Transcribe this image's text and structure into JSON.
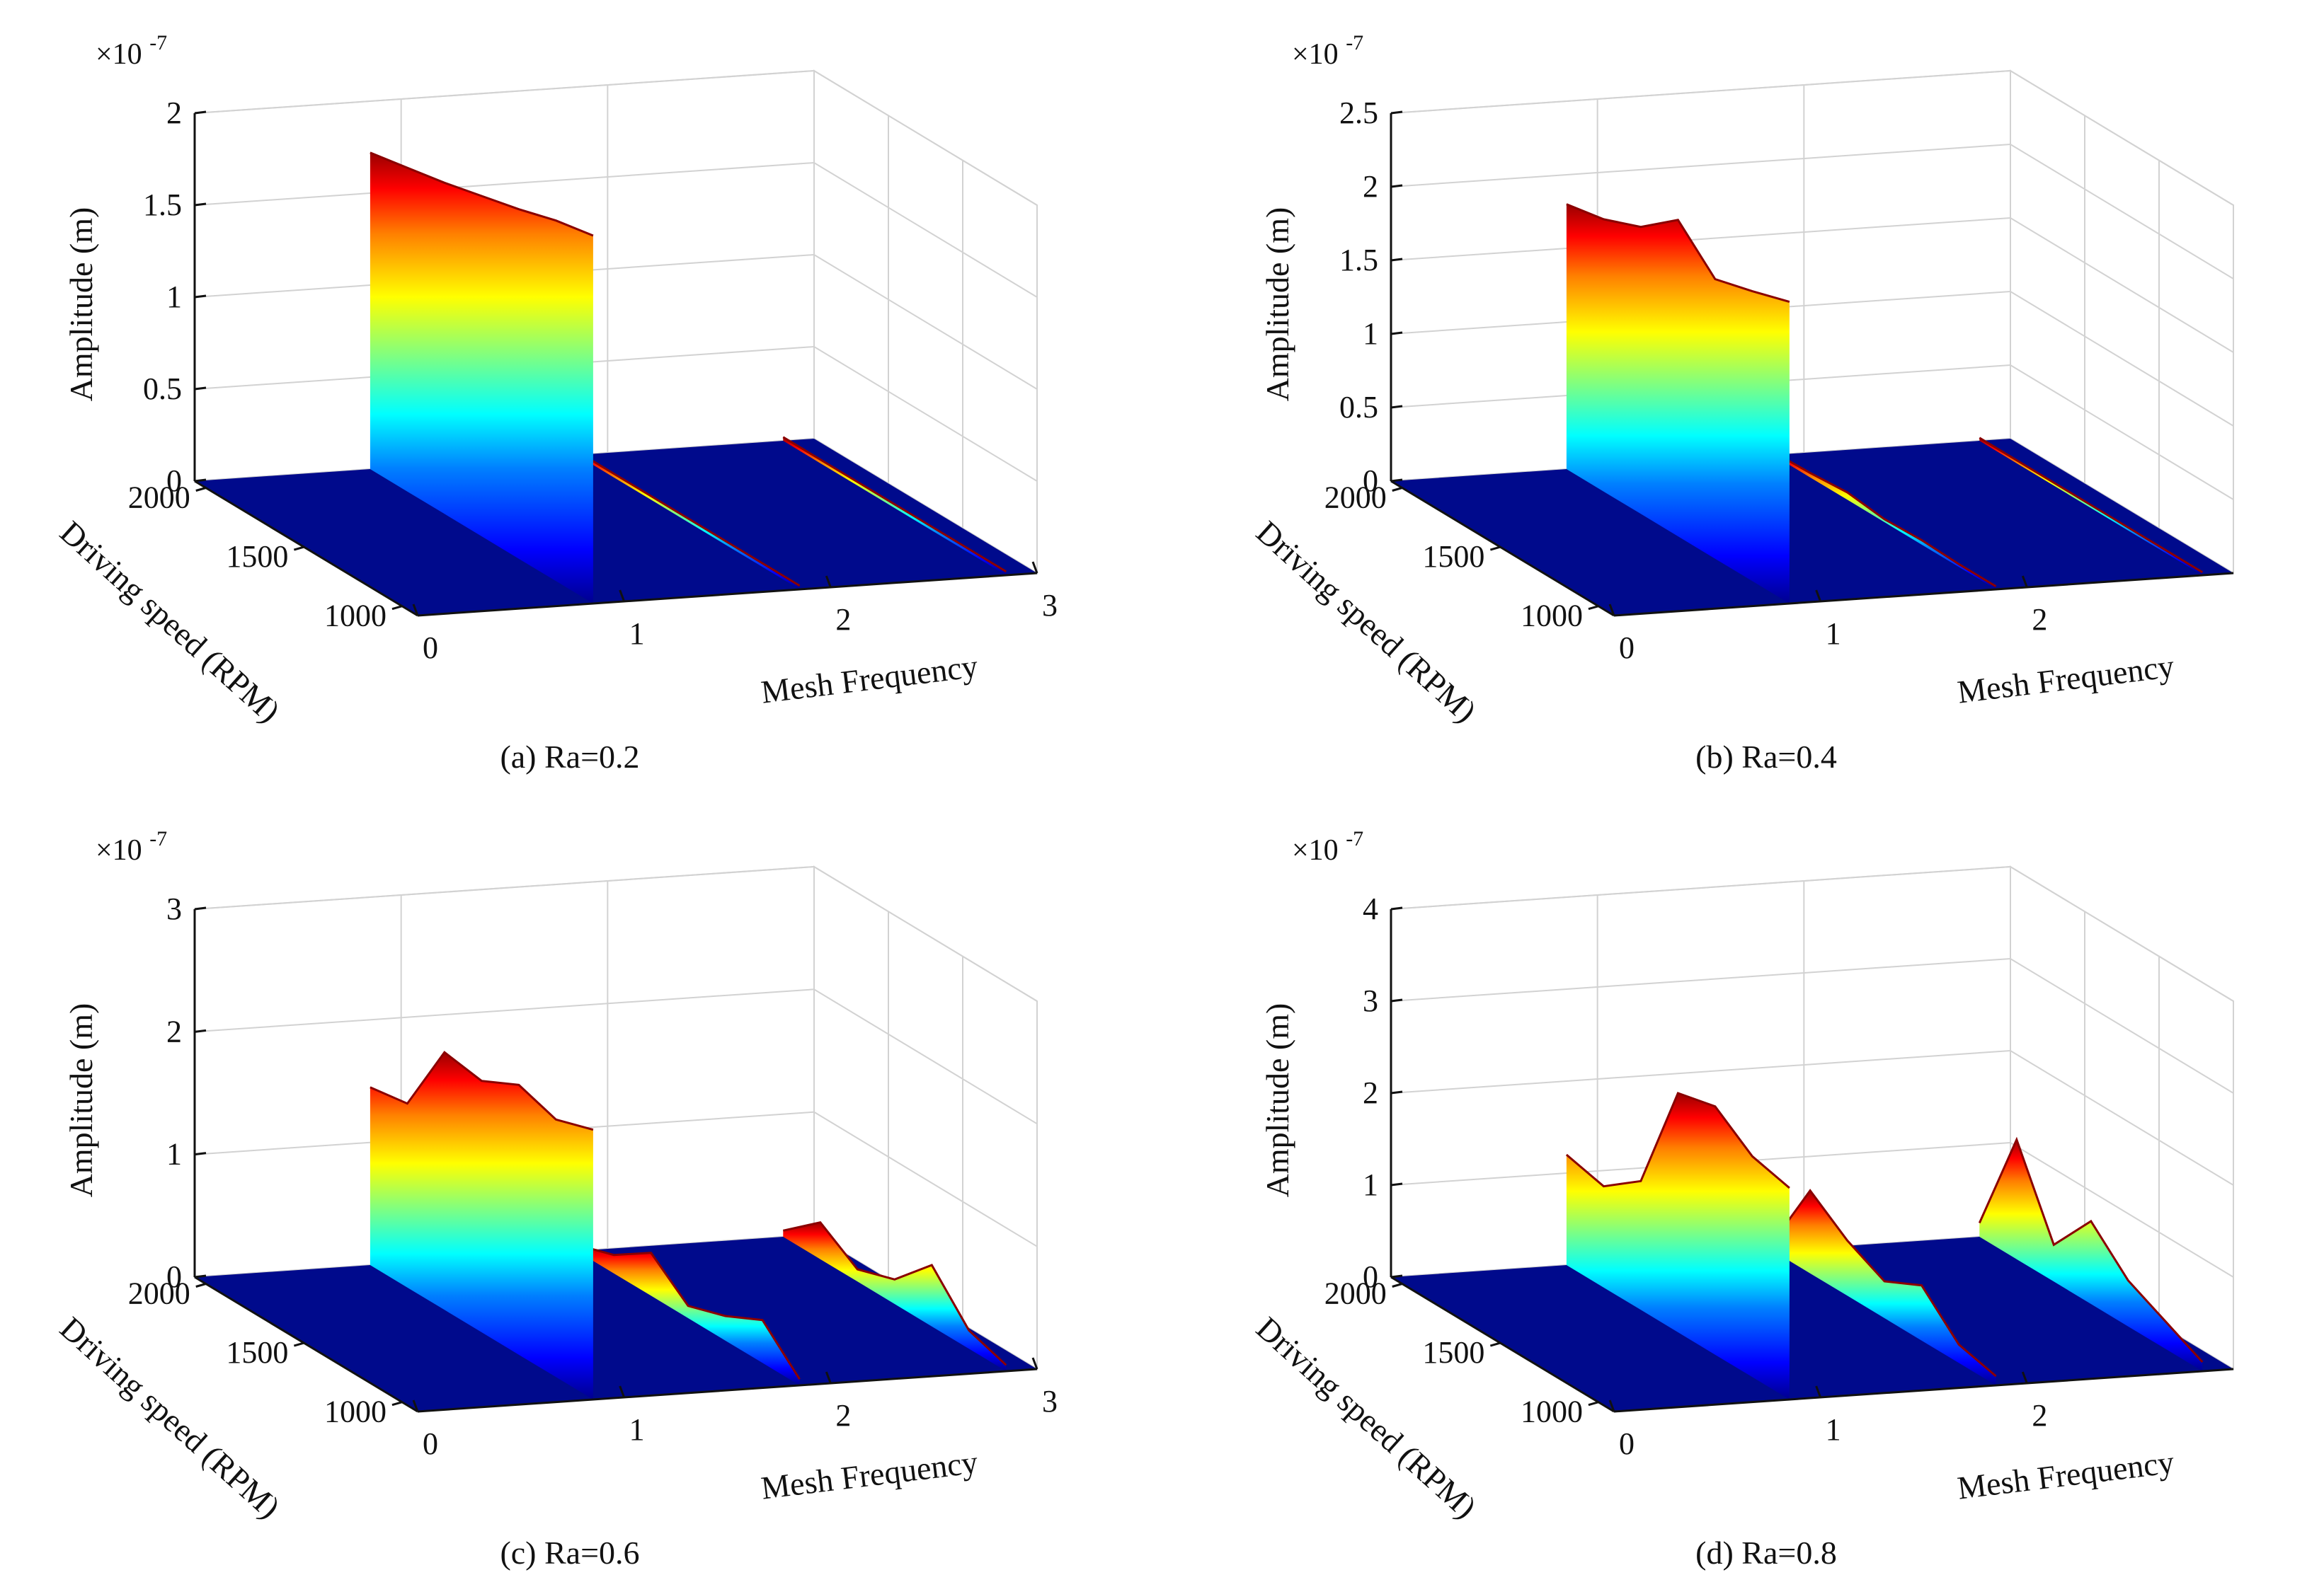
{
  "figure": {
    "background": "#ffffff"
  },
  "chart_data": [
    {
      "type": "surface3d",
      "panel": "a",
      "caption": "(a) Ra=0.2",
      "exponent_label": "×10",
      "exponent": "-7",
      "zlabel": "Amplitude (m)",
      "ylabel": "Driving speed (RPM)",
      "xlabel": "Mesh Frequency",
      "zlim": [
        0,
        2
      ],
      "zticks": [
        "0",
        "0.5",
        "1",
        "1.5",
        "2"
      ],
      "yticks": [
        "2000",
        "1500",
        "1000"
      ],
      "xticks": [
        "0",
        "1",
        "2",
        "3"
      ],
      "colormap": "jet",
      "peaks": [
        {
          "x": 1,
          "amplitude_profile": [
            1.72,
            1.76,
            1.8,
            1.85,
            1.9,
            1.96,
            2.0
          ]
        },
        {
          "x": 2,
          "amplitude_profile": [
            0.02,
            0.02,
            0.02,
            0.02,
            0.02,
            0.02,
            0.02
          ]
        },
        {
          "x": 3,
          "amplitude_profile": [
            0.02,
            0.02,
            0.02,
            0.02,
            0.02,
            0.02,
            0.02
          ]
        }
      ]
    },
    {
      "type": "surface3d",
      "panel": "b",
      "caption": "(b) Ra=0.4",
      "exponent_label": "×10",
      "exponent": "-7",
      "zlabel": "Amplitude (m)",
      "ylabel": "Driving speed (RPM)",
      "xlabel": "Mesh Frequency",
      "zlim": [
        0,
        2.5
      ],
      "zticks": [
        "0",
        "0.5",
        "1",
        "1.5",
        "2",
        "2.5"
      ],
      "yticks": [
        "2000",
        "1500",
        "1000"
      ],
      "xticks": [
        "0",
        "1",
        "2"
      ],
      "colormap": "jet",
      "peaks": [
        {
          "x": 1,
          "amplitude_profile": [
            1.8,
            1.85,
            1.95,
            2.15,
            1.9,
            1.97,
            2.05
          ]
        },
        {
          "x": 2,
          "amplitude_profile": [
            0.02,
            0.03,
            0.05,
            0.02,
            0.03,
            0.02,
            0.02
          ]
        },
        {
          "x": 3,
          "amplitude_profile": [
            0.02,
            0.02,
            0.02,
            0.02,
            0.02,
            0.02,
            0.02
          ]
        }
      ]
    },
    {
      "type": "surface3d",
      "panel": "c",
      "caption": "(c) Ra=0.6",
      "exponent_label": "×10",
      "exponent": "-7",
      "zlabel": "Amplitude (m)",
      "ylabel": "Driving speed (RPM)",
      "xlabel": "Mesh Frequency",
      "zlim": [
        0,
        3
      ],
      "zticks": [
        "0",
        "1",
        "2",
        "3"
      ],
      "yticks": [
        "2000",
        "1500",
        "1000"
      ],
      "xticks": [
        "0",
        "1",
        "2",
        "3"
      ],
      "colormap": "jet",
      "peaks": [
        {
          "x": 1,
          "amplitude_profile": [
            1.45,
            1.5,
            2.1,
            2.05,
            2.2,
            2.1,
            2.2
          ]
        },
        {
          "x": 2,
          "amplitude_profile": [
            0.05,
            0.15,
            0.35,
            0.1,
            0.2,
            0.35,
            0.05
          ]
        },
        {
          "x": 3,
          "amplitude_profile": [
            0.05,
            0.3,
            0.1,
            0.2,
            0.5,
            0.15,
            0.05
          ]
        }
      ]
    },
    {
      "type": "surface3d",
      "panel": "d",
      "caption": "(d) Ra=0.8",
      "exponent_label": "×10",
      "exponent": "-7",
      "zlabel": "Amplitude (m)",
      "ylabel": "Driving speed (RPM)",
      "xlabel": "Mesh Frequency",
      "zlim": [
        0,
        4
      ],
      "zticks": [
        "0",
        "1",
        "2",
        "3",
        "4"
      ],
      "yticks": [
        "2000",
        "1500",
        "1000"
      ],
      "xticks": [
        "0",
        "1",
        "2"
      ],
      "colormap": "jet",
      "peaks": [
        {
          "x": 1,
          "amplitude_profile": [
            1.2,
            1.1,
            1.4,
            2.6,
            2.7,
            2.4,
            2.3
          ]
        },
        {
          "x": 2,
          "amplitude_profile": [
            0.1,
            0.9,
            0.6,
            0.4,
            0.6,
            0.2,
            0.1
          ]
        },
        {
          "x": 3,
          "amplitude_profile": [
            0.15,
            1.3,
            0.4,
            0.9,
            0.5,
            0.3,
            0.1
          ]
        }
      ]
    }
  ]
}
